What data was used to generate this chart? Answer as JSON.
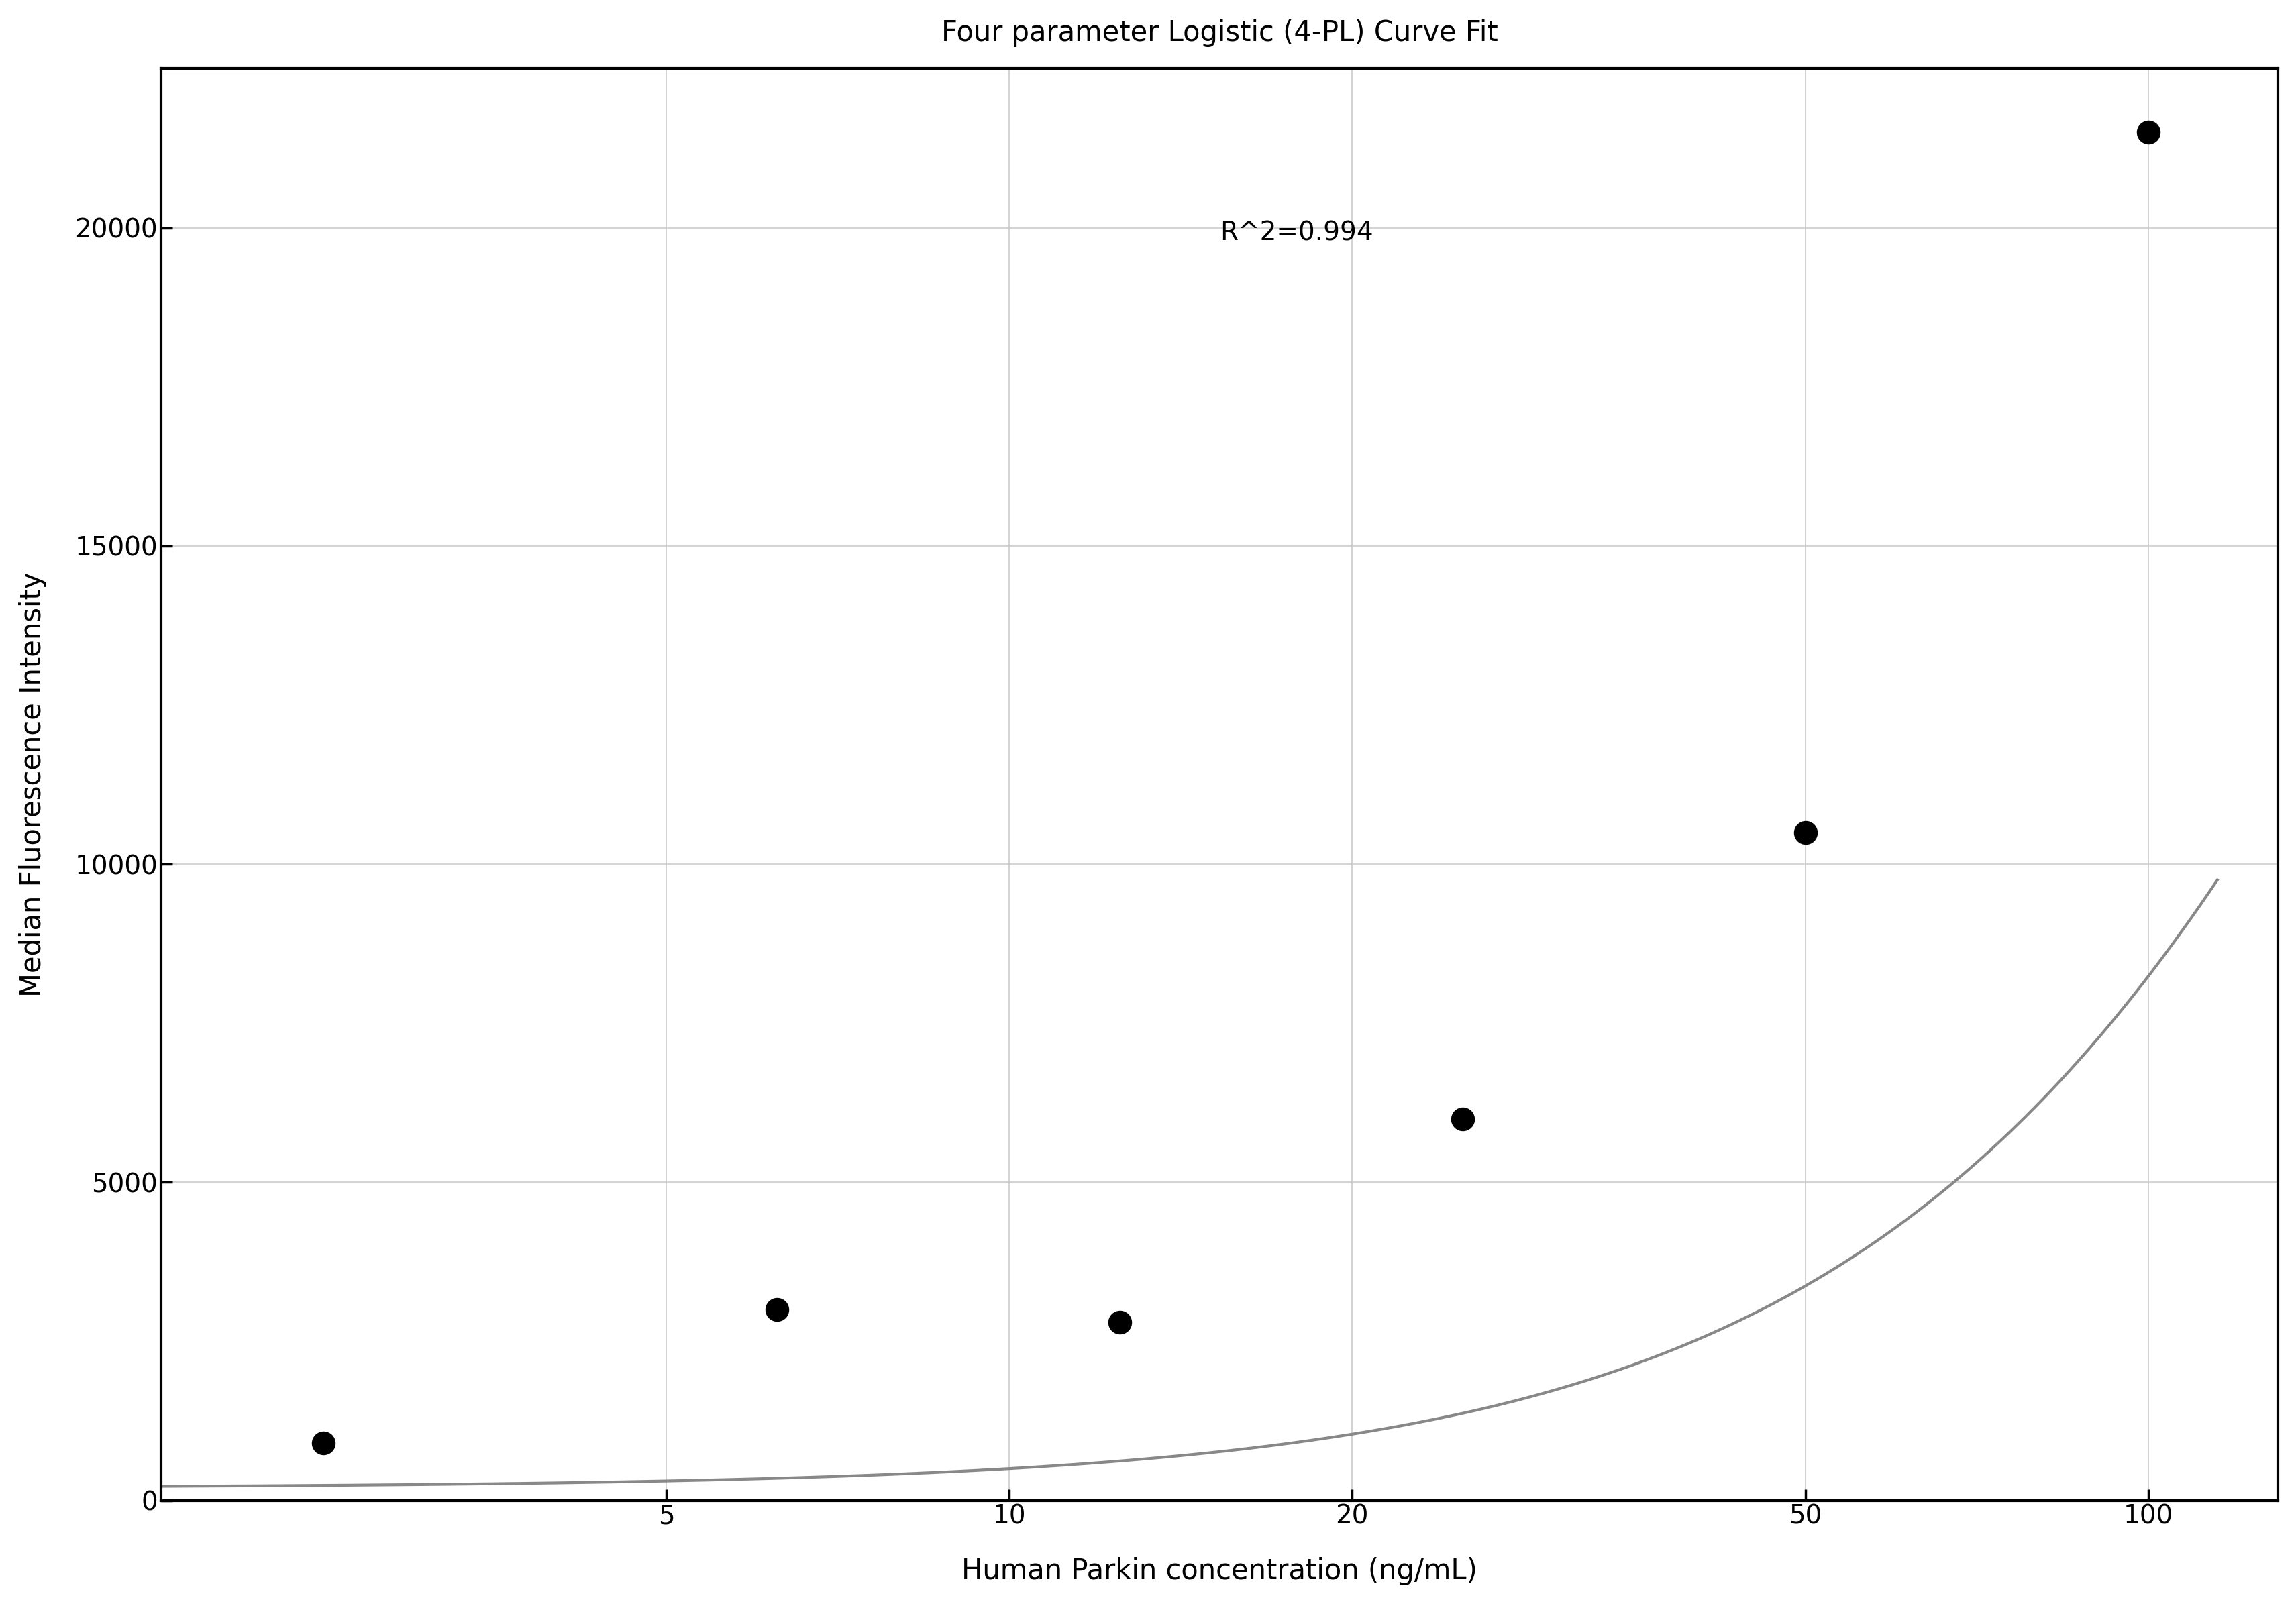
{
  "title": "Four parameter Logistic (4-PL) Curve Fit",
  "xlabel": "Human Parkin concentration (ng/mL)",
  "ylabel": "Median Fluorescence Intensity",
  "r_squared": "R^2=0.994",
  "data_x": [
    2.5,
    6.25,
    12.5,
    25,
    50,
    100
  ],
  "data_y": [
    900,
    3000,
    2800,
    6000,
    10500,
    21500
  ],
  "xlim": [
    1.8,
    130
  ],
  "ylim": [
    0,
    22500
  ],
  "xticks": [
    5,
    10,
    20,
    50,
    100
  ],
  "yticks": [
    0,
    5000,
    10000,
    15000,
    20000
  ],
  "curve_color": "#888888",
  "scatter_color": "#000000",
  "grid_color": "#cccccc",
  "background_color": "#ffffff",
  "title_fontsize": 30,
  "label_fontsize": 30,
  "tick_fontsize": 28,
  "annotation_fontsize": 28,
  "scatter_size": 600,
  "spine_linewidth": 3.0
}
